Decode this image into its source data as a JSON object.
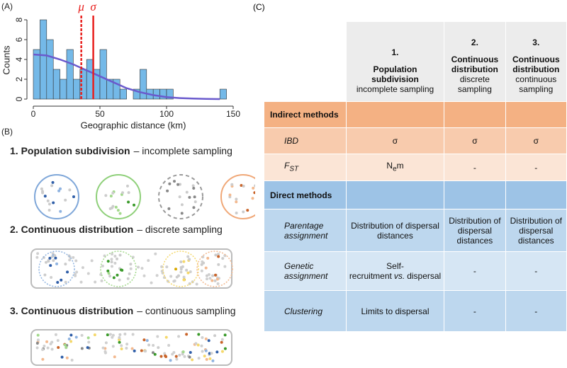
{
  "chart_data": {
    "type": "histogram",
    "panel_label": "(A)",
    "xlabel": "Geographic distance (km)",
    "ylabel": "Counts",
    "bins": [
      0,
      5,
      10,
      15,
      20,
      25,
      30,
      35,
      40,
      45,
      50,
      55,
      60,
      65,
      70,
      75,
      80,
      85,
      90,
      95,
      100,
      105,
      110,
      115,
      120,
      125,
      130,
      135,
      140,
      145
    ],
    "counts": [
      5,
      8,
      6,
      3,
      2,
      5,
      2,
      3,
      4,
      3,
      5,
      2,
      2,
      1,
      0,
      1,
      3,
      1,
      1,
      1,
      1,
      0,
      0,
      0,
      0,
      0,
      0,
      0,
      1
    ],
    "color": "#74b9e8",
    "fit": {
      "color": "#6a5acd",
      "x": [
        0,
        10,
        20,
        30,
        40,
        50,
        60,
        70,
        80,
        90,
        100,
        110,
        120,
        130,
        140
      ],
      "values": [
        4.5,
        4.4,
        4.0,
        3.5,
        2.9,
        2.3,
        1.7,
        1.1,
        0.7,
        0.4,
        0.2,
        0.1,
        0.05,
        0.02,
        0
      ]
    },
    "vlines": [
      {
        "label": "μ",
        "x": 36,
        "color": "#e8201e",
        "dashed": true
      },
      {
        "label": "σ",
        "x": 45,
        "color": "#e8201e",
        "dashed": false
      }
    ],
    "xlim": [
      0,
      150
    ],
    "xticks": [
      0,
      50,
      100,
      150
    ],
    "ylim": [
      0,
      8
    ],
    "yticks": [
      0,
      2,
      4,
      6,
      8
    ]
  },
  "panel_b": {
    "label": "(B)",
    "scenarios": [
      {
        "bold": "1. Population subdivision",
        "rest": "– incomplete sampling"
      },
      {
        "bold": "2. Continuous distribution",
        "rest": "– discrete sampling"
      },
      {
        "bold": "3. Continuous distribution",
        "rest": "– continuous sampling"
      }
    ]
  },
  "panel_c": {
    "label": "(C)",
    "columns": [
      {
        "number": "1.",
        "name": "Population subdivision",
        "detail": "incomplete sampling"
      },
      {
        "number": "2.",
        "name": "Continuous distribution",
        "detail": "discrete sampling"
      },
      {
        "number": "3.",
        "name": "Continuous distribution",
        "detail": "continuous sampling"
      }
    ],
    "sections": [
      {
        "title": "Indirect methods",
        "color": "#f4b183",
        "rows": [
          {
            "label": "IBD",
            "color": "#f8cbad",
            "cells": [
              "σ",
              "σ",
              "σ"
            ]
          },
          {
            "label": {
              "main": "F",
              "sub": "ST"
            },
            "color": "#fbe5d6",
            "cells": [
              {
                "main": "N",
                "sub": "e",
                "rest": "m"
              },
              "-",
              "-"
            ]
          }
        ]
      },
      {
        "title": "Direct methods",
        "color": "#9dc3e6",
        "rows": [
          {
            "label": "Parentage assignment",
            "color": "#bdd7ee",
            "cells": [
              "Distribution of dispersal distances",
              "Distribution of dispersal distances",
              "Distribution of dispersal distances"
            ]
          },
          {
            "label": "Genetic assignment",
            "color": "#d6e6f4",
            "cells": [
              {
                "before": "Self-recruitment",
                "italic": "vs.",
                "after": "dispersal"
              },
              "-",
              "-"
            ]
          },
          {
            "label": "Clustering",
            "color": "#bdd7ee",
            "cells": [
              "Limits to dispersal",
              "-",
              "-"
            ]
          }
        ]
      }
    ]
  }
}
